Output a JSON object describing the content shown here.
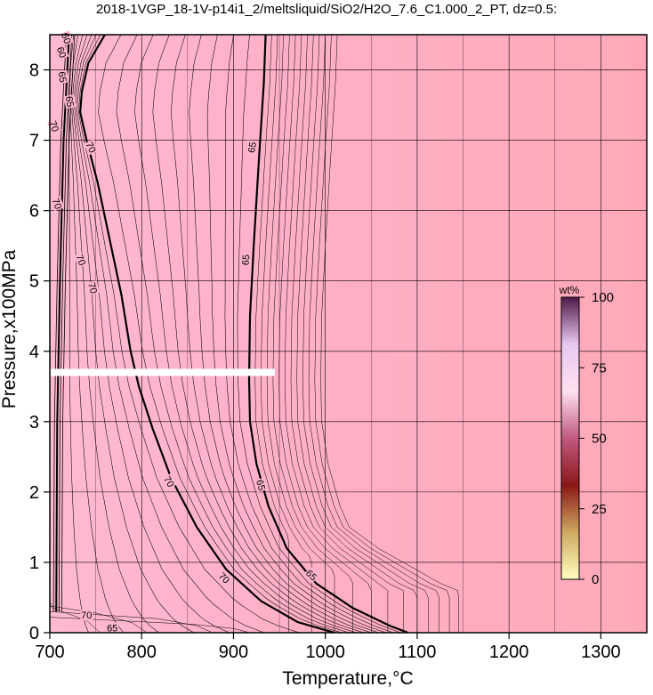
{
  "chart_data": {
    "type": "heatmap",
    "title": "2018-1VGP_18-1V-p14i1_2/meltsliquid/SiO2/H2O_7.6_C1.000_2_PT, dz=0.5:",
    "xlabel": "Temperature,°C",
    "ylabel": "Pressure,x100MPa",
    "xlim": [
      700,
      1350
    ],
    "ylim": [
      0,
      8.5
    ],
    "x_ticks": [
      "700",
      "800",
      "900",
      "1000",
      "1100",
      "1200",
      "1300"
    ],
    "y_ticks": [
      "0",
      "1",
      "2",
      "3",
      "4",
      "5",
      "6",
      "7",
      "8"
    ],
    "grid": true,
    "colorbar": {
      "title": "wt%",
      "ticks": [
        "0",
        "25",
        "50",
        "75",
        "100"
      ],
      "range": [
        0,
        100
      ],
      "colors": [
        "#ffffc0",
        "#cfa860",
        "#8a1818",
        "#c05880",
        "#ffe0f0",
        "#e8c8f0",
        "#501848"
      ]
    },
    "field_colors": {
      "low_T": "#ffb6cf",
      "high_T": "#ffaab8"
    },
    "contour_labels": [
      "60",
      "60",
      "65",
      "70",
      "65",
      "70",
      "70",
      "70",
      "70",
      "65",
      "65",
      "65",
      "65",
      "70",
      "70",
      "70",
      "65"
    ],
    "contours_major": [
      {
        "level": 70,
        "points": [
          [
            760,
            8.5
          ],
          [
            742,
            8.1
          ],
          [
            735,
            7.7
          ],
          [
            733,
            7.4
          ],
          [
            740,
            7.0
          ],
          [
            752,
            6.4
          ],
          [
            765,
            5.6
          ],
          [
            778,
            4.8
          ],
          [
            788,
            4.0
          ],
          [
            797,
            3.5
          ],
          [
            812,
            2.9
          ],
          [
            832,
            2.2
          ],
          [
            860,
            1.5
          ],
          [
            892,
            0.9
          ],
          [
            930,
            0.45
          ],
          [
            970,
            0.15
          ],
          [
            1010,
            0
          ]
        ]
      },
      {
        "level": 65,
        "points": [
          [
            935,
            8.5
          ],
          [
            933,
            7.8
          ],
          [
            928,
            6.8
          ],
          [
            922,
            5.5
          ],
          [
            918,
            4.5
          ],
          [
            917,
            3.6
          ],
          [
            918,
            3.0
          ],
          [
            925,
            2.4
          ],
          [
            938,
            1.8
          ],
          [
            958,
            1.2
          ],
          [
            990,
            0.7
          ],
          [
            1030,
            0.35
          ],
          [
            1070,
            0.1
          ],
          [
            1090,
            0
          ]
        ]
      }
    ],
    "markers": [
      {
        "type": "white-bar",
        "x": [
          700,
          945
        ],
        "y": 3.7
      }
    ]
  }
}
